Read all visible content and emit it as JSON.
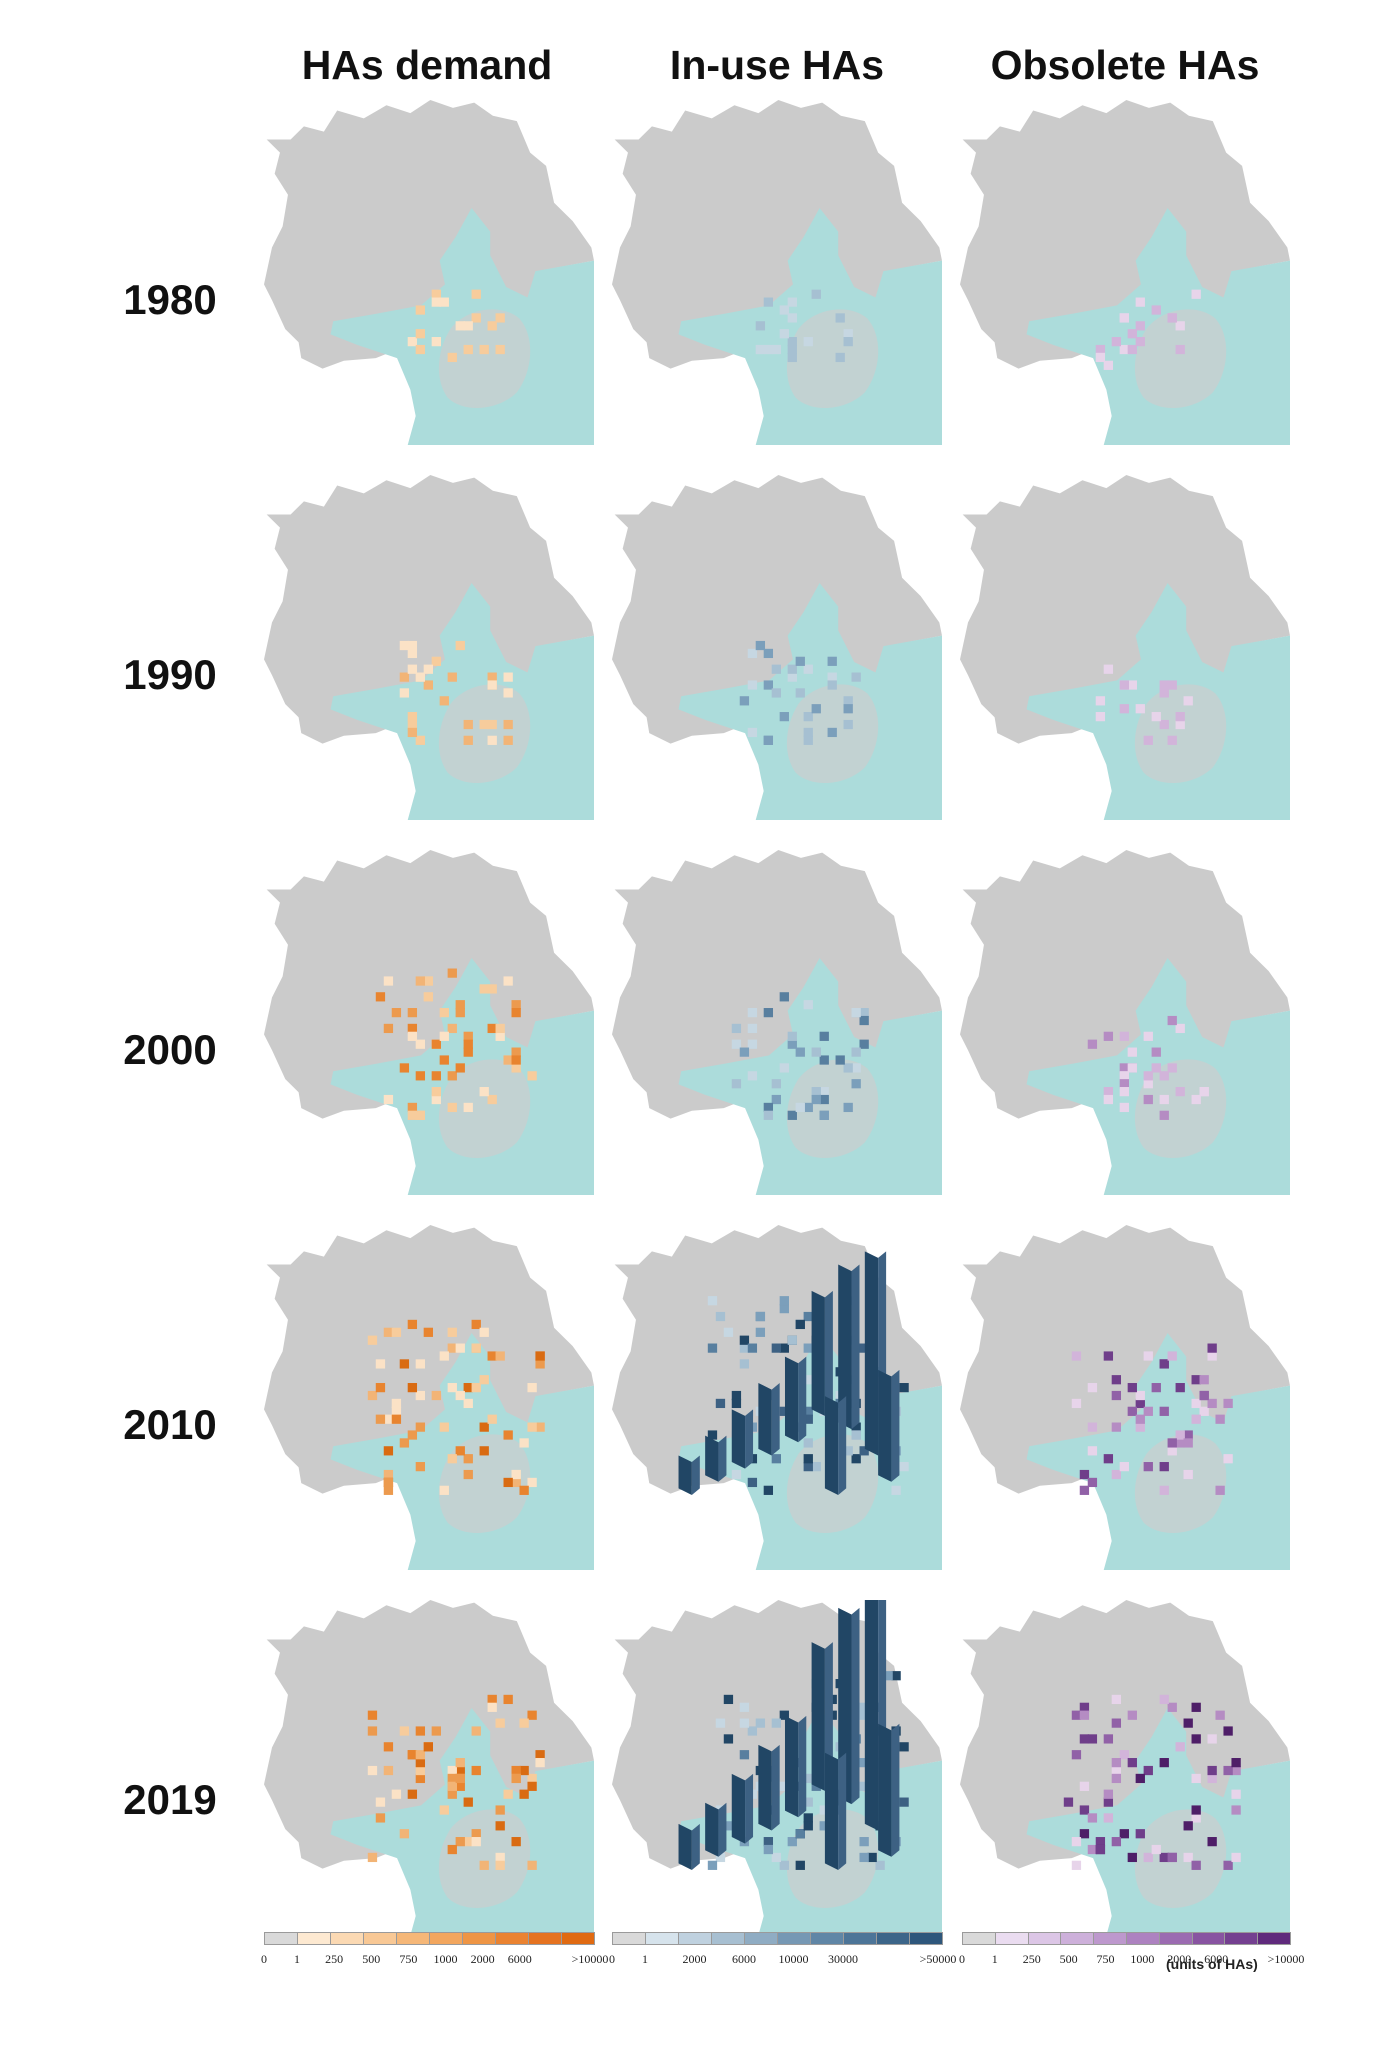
{
  "headers": {
    "demand": "HAs demand",
    "inuse": "In-use HAs",
    "obsolete": "Obsolete HAs"
  },
  "years": [
    "1980",
    "1990",
    "2000",
    "2010",
    "2019"
  ],
  "colors": {
    "land": "#cbcbcb",
    "water": "#acdcdb",
    "demand_ramp": [
      "#fbe2c6",
      "#f7cc9c",
      "#f2b476",
      "#ec9a4e",
      "#e8842f",
      "#d96b12"
    ],
    "inuse_ramp": [
      "#c6d7e2",
      "#a6c0d2",
      "#7b9fbb",
      "#587f9f",
      "#3d6183",
      "#214665"
    ],
    "obsolete_ramp": [
      "#e7d4ea",
      "#d2b4da",
      "#b58cc3",
      "#9161a7",
      "#6f3e8a",
      "#4e1e68"
    ]
  },
  "map_intensity": {
    "demand": [
      1,
      2,
      4,
      5,
      5
    ],
    "inuse": [
      1,
      2,
      3,
      6,
      6
    ],
    "obsolete": [
      1,
      1,
      2,
      4,
      5
    ]
  },
  "legends": {
    "demand": {
      "ticks": [
        "0",
        "1",
        "250",
        "500",
        "750",
        "1000",
        "2000",
        "6000",
        ">10000"
      ],
      "swatches": [
        "#d9d9d9",
        "#fde9d1",
        "#fbd9b3",
        "#f8c895",
        "#f5b778",
        "#f2a65e",
        "#ee9545",
        "#ea8331",
        "#e57320",
        "#e06a12"
      ]
    },
    "inuse": {
      "ticks": [
        "0",
        "1",
        "2000",
        "6000",
        "10000",
        "30000",
        ">50000"
      ],
      "swatches": [
        "#d9d9d9",
        "#d6e3ec",
        "#bfd1df",
        "#a7bfd1",
        "#8facc3",
        "#7698b4",
        "#6086a6",
        "#4d7598",
        "#3c6589",
        "#2e567b"
      ]
    },
    "obsolete": {
      "ticks": [
        "0",
        "1",
        "250",
        "500",
        "750",
        "1000",
        "2000",
        "6000",
        ">10000"
      ],
      "swatches": [
        "#d9d9d9",
        "#eadcf0",
        "#dcc6e6",
        "#cdb0da",
        "#bd98cd",
        "#ad82c0",
        "#9b6bb1",
        "#8854a1",
        "#744090",
        "#5f2a7c"
      ],
      "unit": "(units of HAs)"
    }
  }
}
